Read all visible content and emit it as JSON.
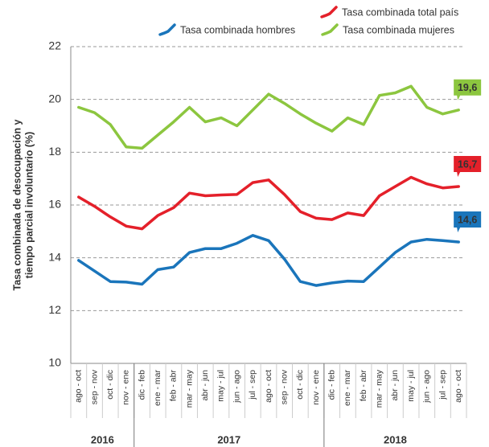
{
  "chart_data": {
    "type": "line",
    "y_label": [
      "Tasa combinada de desocupación y",
      "tiempo parcial involuntario (%)"
    ],
    "categories": [
      "ago - oct",
      "sep - nov",
      "oct - dic",
      "nov - ene",
      "dic - feb",
      "ene - mar",
      "feb - abr",
      "mar - may",
      "abr - jun",
      "may - jul",
      "jun - ago",
      "jul - sep",
      "ago - oct",
      "sep - nov",
      "oct - dic",
      "nov - ene",
      "dic - feb",
      "ene - mar",
      "feb - abr",
      "mar - may",
      "abr - jun",
      "may - jul",
      "jun - ago",
      "jul - sep",
      "ago - oct"
    ],
    "groups": [
      {
        "label": "2016",
        "start": 0,
        "end": 3
      },
      {
        "label": "2017",
        "start": 4,
        "end": 15
      },
      {
        "label": "2018",
        "start": 16,
        "end": 24
      }
    ],
    "series": [
      {
        "name": "Tasa combinada total país",
        "color": "#e4202a",
        "values": [
          16.3,
          15.95,
          15.55,
          15.2,
          15.1,
          15.6,
          15.9,
          16.45,
          16.35,
          16.38,
          16.4,
          16.85,
          16.95,
          16.4,
          15.75,
          15.5,
          15.45,
          15.7,
          15.6,
          16.35,
          16.7,
          17.05,
          16.8,
          16.65,
          16.7
        ],
        "value_labels": [
          null,
          null,
          null,
          null,
          null,
          null,
          null,
          null,
          null,
          null,
          null,
          null,
          null,
          null,
          null,
          null,
          null,
          null,
          null,
          null,
          null,
          null,
          null,
          null,
          "16,7"
        ]
      },
      {
        "name": "Tasa combinada hombres",
        "color": "#1a75bb",
        "values": [
          13.9,
          13.5,
          13.1,
          13.08,
          13.0,
          13.55,
          13.65,
          14.2,
          14.35,
          14.35,
          14.55,
          14.85,
          14.65,
          13.95,
          13.1,
          12.95,
          13.05,
          13.12,
          13.1,
          13.65,
          14.2,
          14.6,
          14.7,
          14.65,
          14.6
        ],
        "value_labels": [
          null,
          null,
          null,
          null,
          null,
          null,
          null,
          null,
          null,
          null,
          null,
          null,
          null,
          null,
          null,
          null,
          null,
          null,
          null,
          null,
          null,
          null,
          null,
          null,
          "14,6"
        ]
      },
      {
        "name": "Tasa combinada mujeres",
        "color": "#8cc63f",
        "values": [
          19.7,
          19.5,
          19.05,
          18.2,
          18.15,
          18.65,
          19.15,
          19.7,
          19.15,
          19.3,
          19.0,
          19.6,
          20.2,
          19.85,
          19.45,
          19.1,
          18.8,
          19.3,
          19.05,
          20.15,
          20.25,
          20.5,
          19.7,
          19.45,
          19.6
        ],
        "value_labels": [
          null,
          null,
          null,
          null,
          null,
          null,
          null,
          null,
          null,
          null,
          null,
          null,
          null,
          null,
          null,
          null,
          null,
          null,
          null,
          null,
          null,
          null,
          null,
          null,
          "19,6"
        ]
      }
    ],
    "ylim": [
      10,
      22
    ],
    "yticks": [
      10,
      12,
      14,
      16,
      18,
      20,
      22
    ],
    "grid": true
  }
}
